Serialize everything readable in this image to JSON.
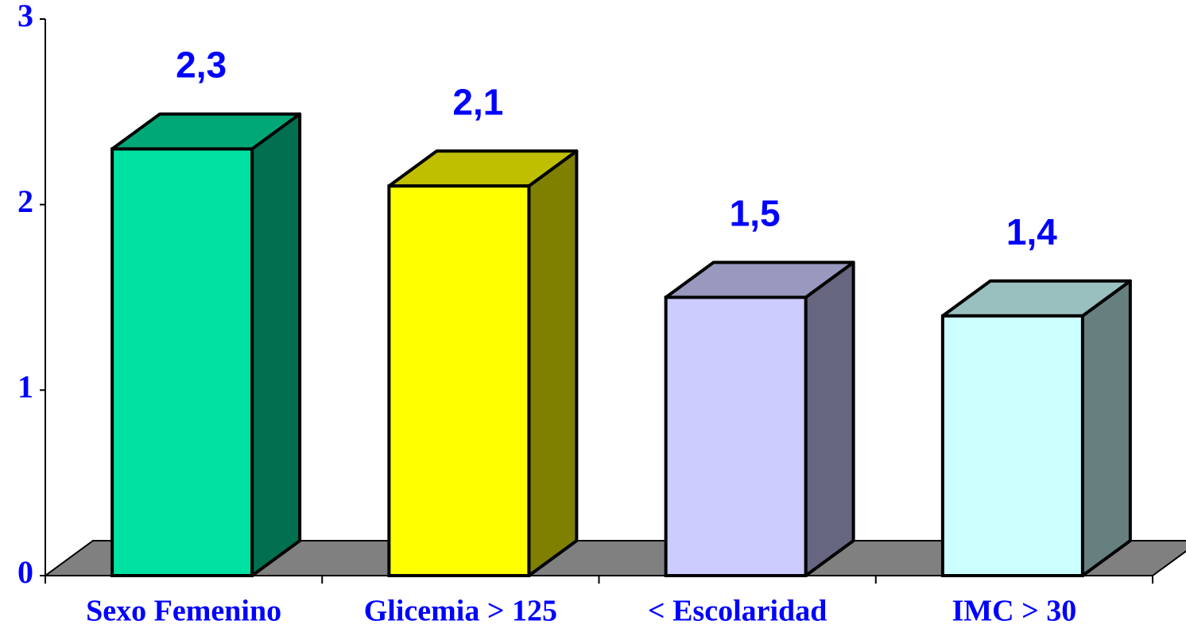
{
  "chart_data": {
    "type": "bar3d",
    "categories": [
      "Sexo Femenino",
      "Glicemia > 125",
      "< Escolaridad",
      "IMC > 30"
    ],
    "values": [
      2.3,
      2.1,
      1.5,
      1.4
    ],
    "value_labels": [
      "2,3",
      "2,1",
      "1,5",
      "1,4"
    ],
    "colors": [
      "#00e0a0",
      "#ffff00",
      "#ccccff",
      "#ccffff"
    ],
    "ylim": [
      0,
      3
    ],
    "yticks": [
      0,
      1,
      2,
      3
    ]
  }
}
